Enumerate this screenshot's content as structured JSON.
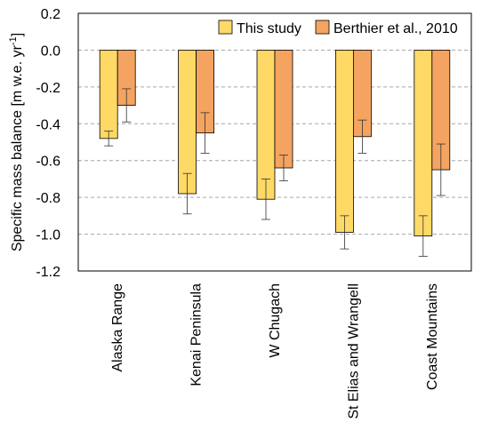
{
  "chart_data": {
    "type": "bar",
    "categories": [
      "Alaska Range",
      "Kenai Peninsula",
      "W Chugach",
      "St Elias and Wrangell",
      "Coast Mountains"
    ],
    "series": [
      {
        "name": "This study",
        "color": "#FFD966",
        "values": [
          -0.48,
          -0.78,
          -0.81,
          -0.99,
          -1.01
        ],
        "errors": [
          0.04,
          0.11,
          0.11,
          0.09,
          0.11
        ]
      },
      {
        "name": "Berthier et al., 2010",
        "color": "#F4A460",
        "values": [
          -0.3,
          -0.45,
          -0.64,
          -0.47,
          -0.65
        ],
        "errors": [
          0.09,
          0.11,
          0.07,
          0.09,
          0.14
        ]
      }
    ],
    "yticks": [
      "0.2",
      "0.0",
      "-0.2",
      "-0.4",
      "-0.6",
      "-0.8",
      "-1.0",
      "-1.2"
    ],
    "ylim": [
      -1.2,
      0.2
    ],
    "ylabel_main": "Specific mass balance [m w.e. yr",
    "ylabel_sup": "-1",
    "ylabel_end": "]",
    "xlabel": "",
    "title": "",
    "grid": "horizontal dashed",
    "legend_position": "top-right",
    "edge_color": "#000000",
    "grid_color": "#a6a6a6"
  }
}
